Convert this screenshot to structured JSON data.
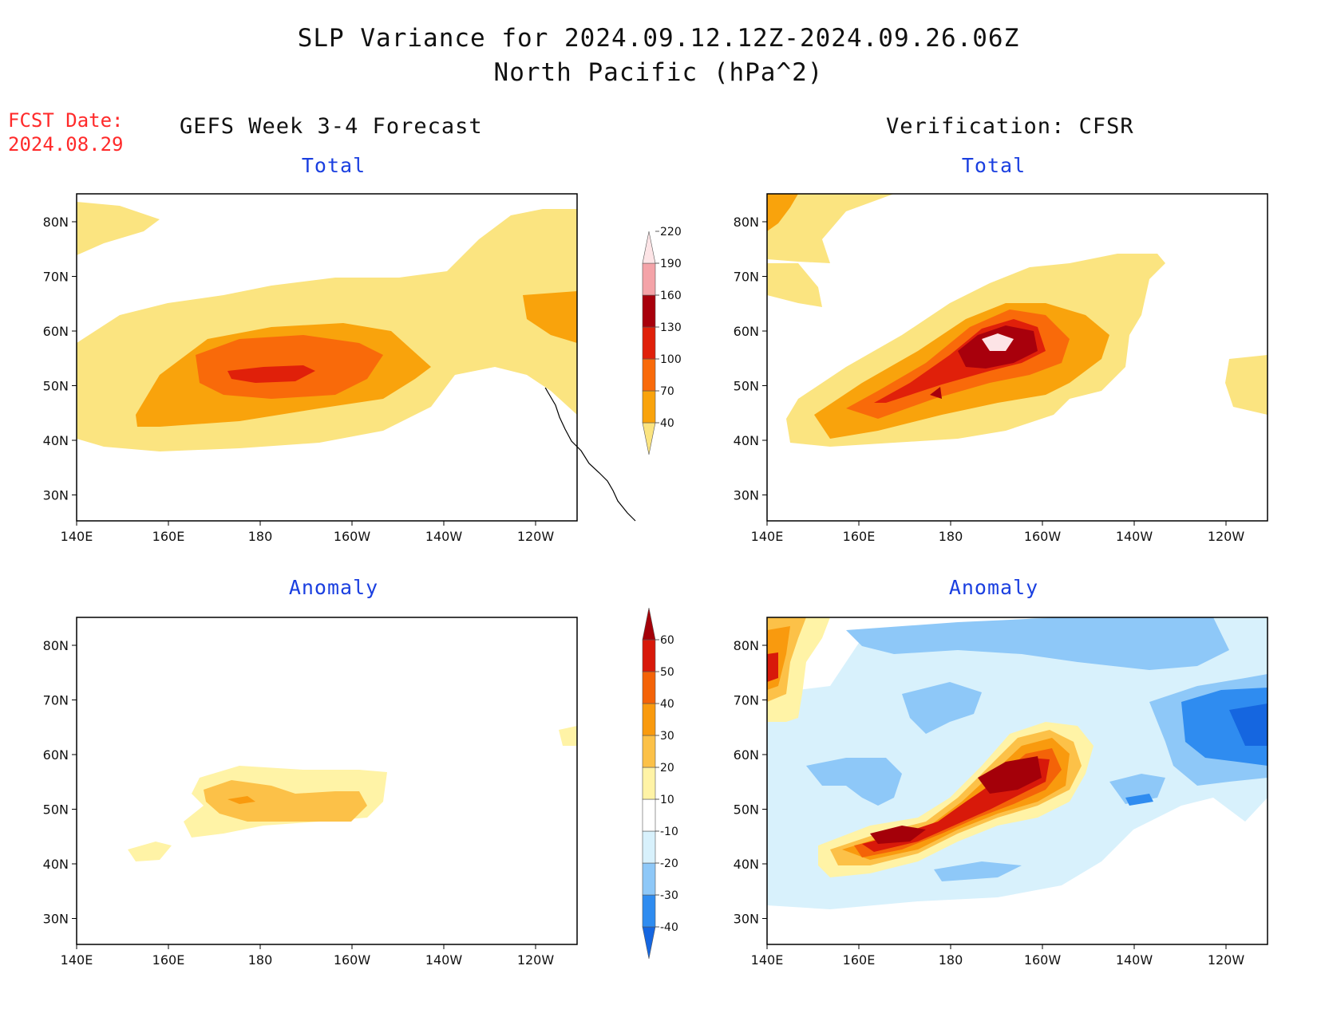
{
  "title": {
    "line1": "SLP Variance for 2024.09.12.12Z-2024.09.26.06Z",
    "line2": "North Pacific (hPa^2)"
  },
  "fcst_date": {
    "label": "FCST Date:",
    "value": "2024.08.29"
  },
  "columns": {
    "left": "GEFS Week 3-4 Forecast",
    "right": "Verification: CFSR"
  },
  "panels": {
    "total_label": "Total",
    "anomaly_label": "Anomaly"
  },
  "axes": {
    "lat_ticks": [
      "80N",
      "70N",
      "60N",
      "50N",
      "40N",
      "30N"
    ],
    "lon_ticks": [
      "140E",
      "160E",
      "180",
      "160W",
      "140W",
      "120W"
    ]
  },
  "colorbars": {
    "total": {
      "levels": [
        "40",
        "70",
        "100",
        "130",
        "160",
        "190",
        "220"
      ],
      "colors": [
        "#fbe480",
        "#f9a30c",
        "#f96a0a",
        "#e0200a",
        "#a8000c",
        "#f4a3a8",
        "#fde4e6"
      ]
    },
    "anomaly": {
      "levels": [
        "-40",
        "-30",
        "-20",
        "-10",
        "10",
        "20",
        "30",
        "40",
        "50",
        "60"
      ],
      "colors": [
        "#1566e0",
        "#2f8cf0",
        "#8ec8f8",
        "#d8f1fc",
        "#ffffff",
        "#fff3a6",
        "#fcc148",
        "#f99a0e",
        "#f46308",
        "#d8190a",
        "#a40009"
      ]
    }
  }
}
